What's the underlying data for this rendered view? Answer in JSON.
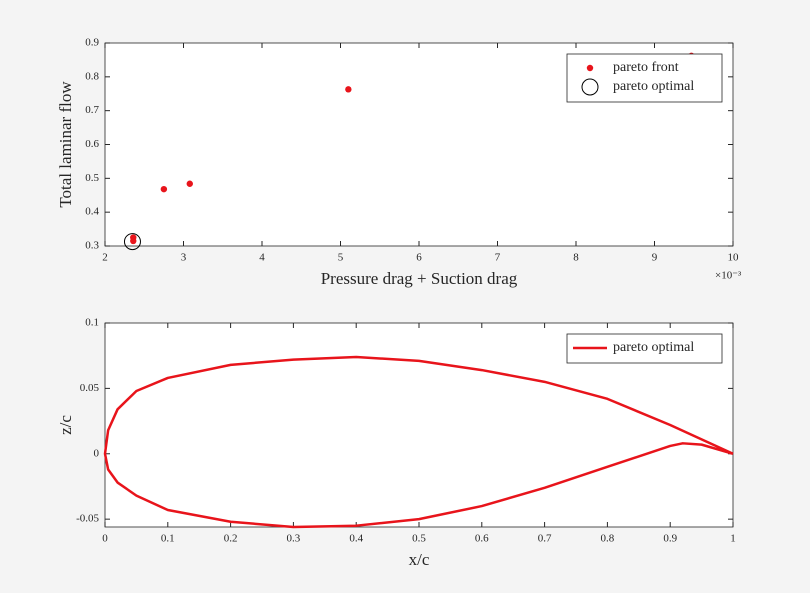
{
  "chart_data": [
    {
      "type": "scatter",
      "x_label": "Pressure drag + Suction drag",
      "y_label": "Total laminar flow",
      "x_exponent_label": "×10⁻³",
      "xlim": [
        0.002,
        0.01
      ],
      "ylim": [
        0.3,
        0.9
      ],
      "xticks": [
        {
          "value": 0.002,
          "label": "2"
        },
        {
          "value": 0.003,
          "label": "3"
        },
        {
          "value": 0.004,
          "label": "4"
        },
        {
          "value": 0.005,
          "label": "5"
        },
        {
          "value": 0.006,
          "label": "6"
        },
        {
          "value": 0.007,
          "label": "7"
        },
        {
          "value": 0.008,
          "label": "8"
        },
        {
          "value": 0.009,
          "label": "9"
        },
        {
          "value": 0.01,
          "label": "10"
        }
      ],
      "yticks": [
        0.3,
        0.4,
        0.5,
        0.6,
        0.7,
        0.8,
        0.9
      ],
      "legend": "upper right",
      "series": [
        {
          "name": "pareto front",
          "color": "#e8141b",
          "marker": "dot",
          "x": [
            0.00236,
            0.00236,
            0.00275,
            0.00308,
            0.0051,
            0.00947
          ],
          "values": [
            0.315,
            0.325,
            0.468,
            0.484,
            0.763,
            0.862
          ]
        },
        {
          "name": "pareto optimal",
          "color": "#000000",
          "marker": "circle",
          "x": [
            0.00235
          ],
          "values": [
            0.313
          ]
        }
      ]
    },
    {
      "type": "line",
      "x_label": "x/c",
      "y_label": "z/c",
      "xlim": [
        0,
        1
      ],
      "ylim": [
        -0.056,
        0.1
      ],
      "xticks": [
        0,
        0.1,
        0.2,
        0.3,
        0.4,
        0.5,
        0.6,
        0.7,
        0.8,
        0.9,
        1
      ],
      "yticks": [
        -0.05,
        0,
        0.05,
        0.1
      ],
      "legend": "upper right",
      "x": [
        1,
        0.9,
        0.8,
        0.7,
        0.6,
        0.5,
        0.4,
        0.3,
        0.2,
        0.1,
        0.05,
        0.02,
        0.005,
        0,
        0.005,
        0.02,
        0.05,
        0.1,
        0.2,
        0.3,
        0.4,
        0.5,
        0.6,
        0.7,
        0.8,
        0.9,
        0.92,
        0.95,
        1
      ],
      "series": [
        {
          "name": "pareto optimal",
          "color": "#e8141b",
          "values": [
            0,
            0.022,
            0.042,
            0.055,
            0.064,
            0.071,
            0.074,
            0.072,
            0.068,
            0.058,
            0.048,
            0.034,
            0.018,
            0,
            -0.012,
            -0.022,
            -0.032,
            -0.043,
            -0.052,
            -0.056,
            -0.055,
            -0.05,
            -0.04,
            -0.026,
            -0.01,
            0.006,
            0.008,
            0.007,
            0
          ]
        }
      ]
    }
  ]
}
